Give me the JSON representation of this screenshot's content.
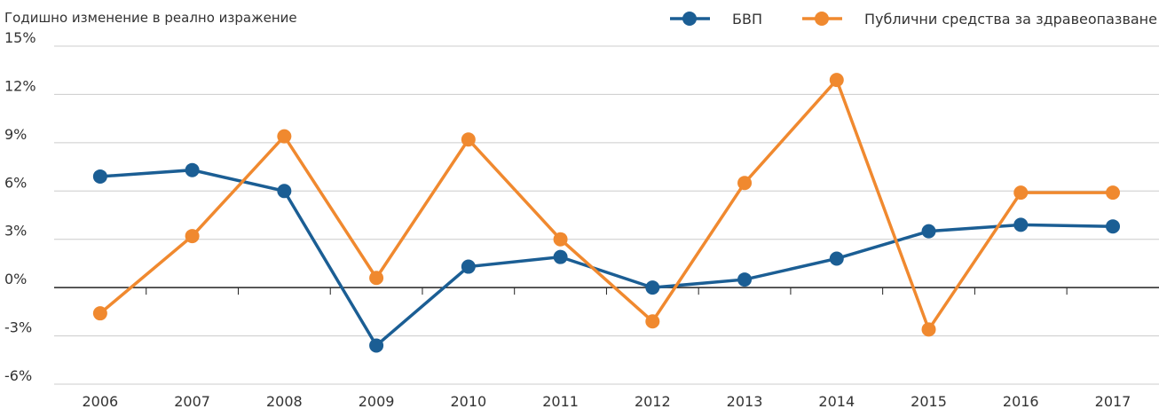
{
  "chart_data": {
    "type": "line",
    "y_axis_label": "Годишно изменение в реално изражение",
    "categories": [
      "2006",
      "2007",
      "2008",
      "2009",
      "2010",
      "2011",
      "2012",
      "2013",
      "2014",
      "2015",
      "2016",
      "2017"
    ],
    "series": [
      {
        "name": "БВП",
        "color": "#1b5e94",
        "values": [
          6.9,
          7.3,
          6.0,
          -3.6,
          1.3,
          1.9,
          0.0,
          0.5,
          1.8,
          3.5,
          3.9,
          3.8
        ]
      },
      {
        "name": "Публични средства за здравеопазване",
        "color": "#f0892f",
        "values": [
          -1.6,
          3.2,
          9.4,
          0.6,
          9.2,
          3.0,
          -2.1,
          6.5,
          12.9,
          -2.6,
          5.9,
          5.9
        ]
      }
    ],
    "ylim": [
      -6,
      15
    ],
    "yticks": [
      {
        "value": -6,
        "label": "-6%"
      },
      {
        "value": -3,
        "label": "-3%"
      },
      {
        "value": 0,
        "label": "0%"
      },
      {
        "value": 3,
        "label": "3%"
      },
      {
        "value": 6,
        "label": "6%"
      },
      {
        "value": 9,
        "label": "9%"
      },
      {
        "value": 12,
        "label": "12%"
      },
      {
        "value": 15,
        "label": "15%"
      }
    ],
    "grid": true,
    "legend": "top-right"
  }
}
